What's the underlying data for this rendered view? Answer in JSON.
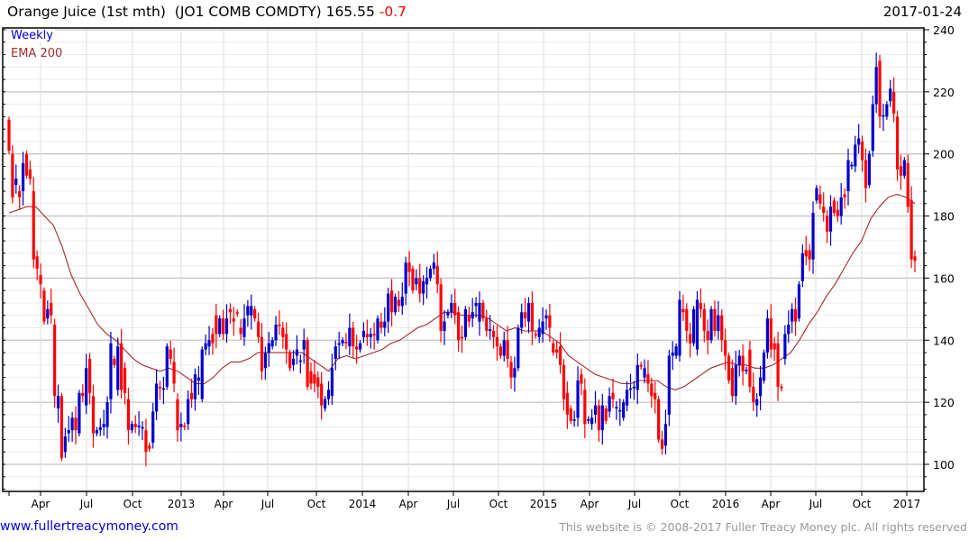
{
  "header": {
    "title": "Orange Juice (1st mth)  (JO1 COMB COMDTY) 165.55",
    "change": "-0.7",
    "date": "2017-01-24"
  },
  "legend": {
    "weekly": "Weekly",
    "ema": "EMA 200"
  },
  "footer": {
    "site": "www.fullertreacymoney.com",
    "copyright": "This website is © 2008-2017 Fuller Treacy Money plc. All rights reserved"
  },
  "colors": {
    "up": "#0000cc",
    "down": "#ff0000",
    "ema": "#a52a2a"
  },
  "chart_data": {
    "type": "candlestick",
    "title": "Orange Juice (1st mth) (JO1 COMB COMDTY)",
    "last": 165.55,
    "change": -0.7,
    "interval": "Weekly",
    "ylim": [
      92,
      242
    ],
    "yticks": [
      100,
      120,
      140,
      160,
      180,
      200,
      220,
      240
    ],
    "xticks": [
      "Apr",
      "Jul",
      "Oct",
      "2013",
      "Apr",
      "Jul",
      "Oct",
      "2014",
      "Apr",
      "Jul",
      "Oct",
      "2015",
      "Apr",
      "Jul",
      "Oct",
      "2016",
      "Apr",
      "Jul",
      "Oct",
      "2017"
    ],
    "grid": true,
    "candles_open_close": [
      [
        211,
        201
      ],
      [
        200,
        186
      ],
      [
        190,
        192
      ],
      [
        188,
        186
      ],
      [
        188,
        197
      ],
      [
        200,
        193
      ],
      [
        195,
        192
      ],
      [
        188,
        166
      ],
      [
        167,
        163
      ],
      [
        161,
        158
      ],
      [
        156,
        146
      ],
      [
        147,
        150
      ],
      [
        152,
        148
      ],
      [
        145,
        122
      ],
      [
        118,
        122
      ],
      [
        122,
        102
      ],
      [
        104,
        109
      ],
      [
        110,
        111
      ],
      [
        111,
        115
      ],
      [
        115,
        111
      ],
      [
        110,
        123
      ],
      [
        123,
        122
      ],
      [
        119,
        131
      ],
      [
        134,
        123
      ],
      [
        122,
        110
      ],
      [
        110,
        111
      ],
      [
        111,
        112
      ],
      [
        112,
        113
      ],
      [
        112,
        120
      ],
      [
        121,
        139
      ],
      [
        134,
        132
      ],
      [
        124,
        138
      ],
      [
        139,
        124
      ],
      [
        131,
        123
      ],
      [
        121,
        111
      ],
      [
        111,
        113
      ],
      [
        113,
        112
      ],
      [
        112,
        112.5
      ],
      [
        111.5,
        112
      ],
      [
        111,
        104
      ],
      [
        106,
        105
      ],
      [
        107,
        117
      ],
      [
        117,
        126
      ],
      [
        125,
        124.5
      ],
      [
        124,
        124.5
      ],
      [
        125,
        138
      ],
      [
        137,
        134
      ],
      [
        133,
        126
      ],
      [
        121,
        111
      ],
      [
        112,
        113
      ],
      [
        112.5,
        112
      ],
      [
        113,
        121
      ],
      [
        123,
        121
      ],
      [
        121,
        129
      ],
      [
        127,
        128
      ],
      [
        121,
        137
      ],
      [
        137,
        139
      ],
      [
        138,
        140
      ],
      [
        142,
        139
      ],
      [
        148,
        142
      ],
      [
        142,
        147
      ],
      [
        147,
        142
      ],
      [
        142,
        147
      ],
      [
        150,
        149
      ],
      [
        147,
        146
      ],
      [
        149,
        148.5
      ],
      [
        144,
        142
      ],
      [
        141,
        147
      ],
      [
        148,
        151
      ],
      [
        148,
        151
      ],
      [
        150,
        147
      ],
      [
        146,
        141
      ],
      [
        141,
        130
      ],
      [
        131,
        136
      ],
      [
        136,
        139
      ],
      [
        138,
        140
      ],
      [
        140,
        145
      ],
      [
        145,
        144.5
      ],
      [
        144,
        141
      ],
      [
        142,
        137
      ],
      [
        136,
        131
      ],
      [
        132,
        134
      ],
      [
        135,
        137
      ],
      [
        133,
        133.5
      ],
      [
        137,
        140
      ],
      [
        140,
        125
      ],
      [
        130,
        126
      ],
      [
        129,
        126
      ],
      [
        128,
        125
      ],
      [
        126,
        119
      ],
      [
        118,
        121
      ],
      [
        121,
        124
      ],
      [
        122,
        131
      ],
      [
        134,
        138
      ],
      [
        138.5,
        139
      ],
      [
        139,
        140
      ],
      [
        139.5,
        139
      ],
      [
        138,
        144
      ],
      [
        144,
        138
      ],
      [
        138,
        137
      ],
      [
        137,
        139
      ],
      [
        141,
        143
      ],
      [
        142,
        141
      ],
      [
        141,
        142
      ],
      [
        142,
        141.5
      ],
      [
        140,
        147
      ],
      [
        146,
        144
      ],
      [
        144,
        146
      ],
      [
        146,
        155
      ],
      [
        156,
        149
      ],
      [
        149,
        154
      ],
      [
        153,
        151
      ],
      [
        151,
        154
      ],
      [
        155,
        165
      ],
      [
        165,
        162
      ],
      [
        163,
        156
      ],
      [
        158,
        160
      ],
      [
        160,
        155
      ],
      [
        155,
        159
      ],
      [
        158,
        160
      ],
      [
        160,
        163
      ],
      [
        163,
        165
      ],
      [
        164,
        158
      ],
      [
        158,
        143
      ],
      [
        143,
        146
      ],
      [
        148,
        149
      ],
      [
        149,
        152
      ],
      [
        152,
        148
      ],
      [
        149,
        140
      ],
      [
        141,
        140.5
      ],
      [
        141,
        150
      ],
      [
        148,
        146
      ],
      [
        147,
        149
      ],
      [
        151,
        152
      ],
      [
        146,
        152
      ],
      [
        152,
        147
      ],
      [
        147,
        143
      ],
      [
        143,
        143.5
      ],
      [
        143,
        141
      ],
      [
        141,
        138
      ],
      [
        138,
        135
      ],
      [
        135,
        140
      ],
      [
        140,
        134
      ],
      [
        133,
        128
      ],
      [
        128,
        131
      ],
      [
        131,
        144
      ],
      [
        144,
        149
      ],
      [
        149,
        147
      ],
      [
        146,
        152
      ],
      [
        152,
        143
      ],
      [
        142,
        141.5
      ],
      [
        141,
        144
      ],
      [
        142,
        146
      ],
      [
        147,
        148
      ],
      [
        148,
        144
      ],
      [
        139,
        136
      ],
      [
        137,
        136
      ],
      [
        138,
        132
      ],
      [
        132,
        121
      ],
      [
        123,
        116
      ],
      [
        118,
        114
      ],
      [
        114,
        114.5
      ],
      [
        115,
        127
      ],
      [
        129,
        126
      ],
      [
        124,
        113
      ],
      [
        114,
        114.5
      ],
      [
        113,
        115
      ],
      [
        116,
        119
      ],
      [
        119,
        111
      ],
      [
        111,
        119
      ],
      [
        118,
        114
      ],
      [
        117,
        122
      ],
      [
        123,
        121
      ],
      [
        118,
        118.5
      ],
      [
        117,
        117.5
      ],
      [
        115,
        120
      ],
      [
        119,
        124
      ],
      [
        124,
        124.5
      ],
      [
        124.5,
        125
      ],
      [
        124,
        132
      ],
      [
        132,
        131.5
      ],
      [
        128,
        131
      ],
      [
        129,
        126
      ],
      [
        126,
        122
      ],
      [
        123,
        121
      ],
      [
        121,
        108
      ],
      [
        108,
        105
      ],
      [
        106,
        113
      ],
      [
        116,
        135
      ],
      [
        135,
        136
      ],
      [
        135,
        138
      ],
      [
        135,
        153
      ],
      [
        150,
        149
      ],
      [
        150,
        143
      ],
      [
        142,
        139
      ],
      [
        139,
        150
      ],
      [
        137,
        153
      ],
      [
        152,
        150
      ],
      [
        150,
        143
      ],
      [
        143,
        140
      ],
      [
        140,
        150
      ],
      [
        150,
        143
      ],
      [
        143,
        148
      ],
      [
        148,
        140
      ],
      [
        140,
        135
      ],
      [
        135,
        127
      ],
      [
        131,
        122
      ],
      [
        122,
        132
      ],
      [
        132,
        135
      ],
      [
        135,
        130
      ],
      [
        130,
        130.5
      ],
      [
        137,
        125
      ],
      [
        125,
        120
      ],
      [
        119,
        121
      ],
      [
        122,
        128
      ],
      [
        127,
        136
      ],
      [
        136,
        147
      ],
      [
        147,
        137
      ],
      [
        139,
        137
      ],
      [
        139,
        125
      ],
      [
        125,
        124.5
      ],
      [
        134,
        142
      ],
      [
        142,
        145
      ],
      [
        146,
        150
      ],
      [
        150,
        146
      ],
      [
        147,
        158
      ],
      [
        159,
        168
      ],
      [
        169,
        167
      ],
      [
        169,
        166
      ],
      [
        166,
        181
      ],
      [
        185,
        189
      ],
      [
        187,
        184
      ],
      [
        183,
        181
      ],
      [
        180,
        175
      ],
      [
        175,
        183
      ],
      [
        185,
        181
      ],
      [
        182,
        180
      ],
      [
        180,
        186
      ],
      [
        187,
        186
      ],
      [
        188,
        198
      ],
      [
        196,
        196.5
      ],
      [
        196,
        203
      ],
      [
        203,
        205
      ],
      [
        204,
        198
      ],
      [
        198,
        189
      ],
      [
        190,
        200
      ],
      [
        201,
        216
      ],
      [
        216,
        228
      ],
      [
        230,
        212
      ],
      [
        212,
        212.5
      ],
      [
        212,
        216
      ],
      [
        217,
        221
      ],
      [
        220,
        213
      ],
      [
        212,
        195
      ],
      [
        196,
        193
      ],
      [
        193,
        198
      ],
      [
        197,
        183
      ],
      [
        185,
        166
      ],
      [
        167,
        165.55
      ]
    ],
    "ema200": [
      181,
      182,
      183,
      183,
      180,
      177,
      170,
      161,
      155,
      150,
      145,
      142,
      140,
      137,
      134,
      132,
      131,
      130,
      131,
      130,
      128,
      126,
      126,
      128,
      131,
      133,
      133,
      134,
      136,
      136,
      136,
      136,
      136,
      136,
      134,
      132,
      130,
      134,
      135,
      134,
      135,
      136,
      137,
      139,
      140,
      142,
      144,
      145,
      147,
      149,
      149,
      148,
      148,
      148,
      147,
      145,
      143,
      144,
      143,
      143,
      143,
      141,
      139,
      135,
      133,
      131,
      129,
      128,
      127,
      126,
      126,
      127,
      127,
      127,
      125,
      124,
      125,
      127,
      129,
      131,
      132,
      133,
      132,
      132,
      131,
      131,
      132,
      134,
      136,
      140,
      145,
      149,
      154,
      158,
      163,
      168,
      172,
      179,
      183,
      186,
      187,
      186,
      184
    ]
  }
}
